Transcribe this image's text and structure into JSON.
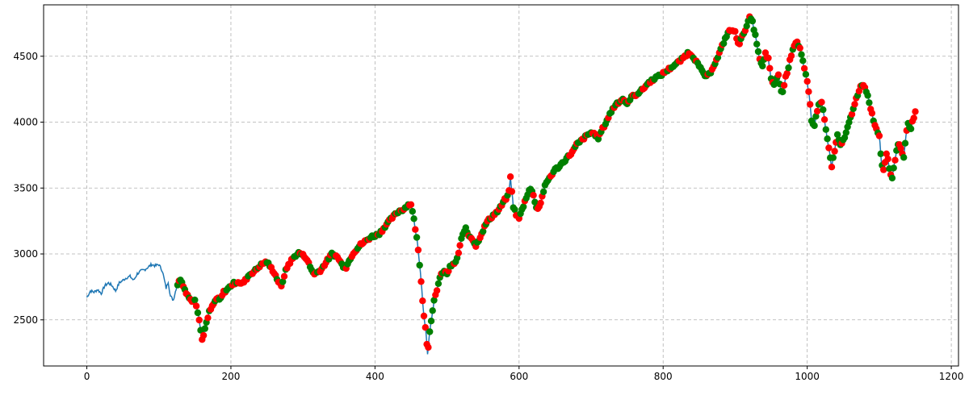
{
  "chart_data": {
    "type": "line",
    "title": "",
    "xlabel": "",
    "ylabel": "",
    "xlim": [
      -60,
      1210
    ],
    "ylim": [
      2150,
      4890
    ],
    "xticks": [
      0,
      200,
      400,
      600,
      800,
      1000,
      1200
    ],
    "yticks": [
      2500,
      3000,
      3500,
      4000,
      4500
    ],
    "xtick_labels": [
      "0",
      "200",
      "400",
      "600",
      "800",
      "1000",
      "1200"
    ],
    "ytick_labels": [
      "2500",
      "3000",
      "3500",
      "4000",
      "4500"
    ],
    "grid": true,
    "grid_style": "dashed",
    "colors": {
      "line": "#1f77b4",
      "sell_marker": "#ff0000",
      "buy_marker": "#008000",
      "grid": "#b0b0b0"
    },
    "series": [
      {
        "type": "line",
        "points": [
          [
            0,
            2670
          ],
          [
            5,
            2720
          ],
          [
            10,
            2710
          ],
          [
            15,
            2730
          ],
          [
            20,
            2700
          ],
          [
            25,
            2760
          ],
          [
            30,
            2780
          ],
          [
            35,
            2760
          ],
          [
            40,
            2720
          ],
          [
            45,
            2780
          ],
          [
            50,
            2800
          ],
          [
            55,
            2820
          ],
          [
            60,
            2830
          ],
          [
            65,
            2800
          ],
          [
            70,
            2850
          ],
          [
            75,
            2870
          ],
          [
            80,
            2880
          ],
          [
            85,
            2900
          ],
          [
            90,
            2920
          ],
          [
            95,
            2910
          ],
          [
            100,
            2920
          ],
          [
            105,
            2870
          ],
          [
            110,
            2740
          ],
          [
            113,
            2790
          ],
          [
            116,
            2680
          ],
          [
            120,
            2650
          ],
          [
            125,
            2760
          ],
          [
            130,
            2810
          ],
          [
            135,
            2740
          ],
          [
            140,
            2690
          ],
          [
            145,
            2640
          ],
          [
            150,
            2660
          ],
          [
            155,
            2540
          ],
          [
            158,
            2420
          ],
          [
            160,
            2350
          ],
          [
            165,
            2450
          ],
          [
            170,
            2560
          ],
          [
            175,
            2610
          ],
          [
            180,
            2660
          ],
          [
            185,
            2650
          ],
          [
            190,
            2710
          ],
          [
            195,
            2730
          ],
          [
            200,
            2760
          ],
          [
            205,
            2780
          ],
          [
            210,
            2790
          ],
          [
            215,
            2770
          ],
          [
            220,
            2800
          ],
          [
            225,
            2840
          ],
          [
            230,
            2860
          ],
          [
            235,
            2880
          ],
          [
            240,
            2910
          ],
          [
            245,
            2930
          ],
          [
            250,
            2940
          ],
          [
            255,
            2900
          ],
          [
            260,
            2860
          ],
          [
            265,
            2800
          ],
          [
            270,
            2750
          ],
          [
            275,
            2860
          ],
          [
            280,
            2920
          ],
          [
            285,
            2960
          ],
          [
            290,
            2990
          ],
          [
            295,
            3010
          ],
          [
            300,
            2990
          ],
          [
            305,
            2970
          ],
          [
            310,
            2900
          ],
          [
            315,
            2850
          ],
          [
            320,
            2860
          ],
          [
            325,
            2880
          ],
          [
            330,
            2920
          ],
          [
            335,
            2960
          ],
          [
            340,
            3000
          ],
          [
            345,
            2990
          ],
          [
            350,
            2960
          ],
          [
            355,
            2910
          ],
          [
            360,
            2900
          ],
          [
            365,
            2960
          ],
          [
            370,
            3010
          ],
          [
            375,
            3040
          ],
          [
            380,
            3070
          ],
          [
            385,
            3090
          ],
          [
            390,
            3110
          ],
          [
            395,
            3130
          ],
          [
            400,
            3140
          ],
          [
            405,
            3150
          ],
          [
            410,
            3180
          ],
          [
            415,
            3220
          ],
          [
            420,
            3250
          ],
          [
            425,
            3280
          ],
          [
            430,
            3310
          ],
          [
            435,
            3330
          ],
          [
            440,
            3340
          ],
          [
            445,
            3370
          ],
          [
            450,
            3380
          ],
          [
            455,
            3230
          ],
          [
            458,
            3120
          ],
          [
            461,
            2980
          ],
          [
            463,
            2870
          ],
          [
            465,
            2720
          ],
          [
            467,
            2590
          ],
          [
            469,
            2480
          ],
          [
            471,
            2400
          ],
          [
            473,
            2240
          ],
          [
            476,
            2420
          ],
          [
            479,
            2520
          ],
          [
            482,
            2640
          ],
          [
            486,
            2730
          ],
          [
            490,
            2820
          ],
          [
            495,
            2870
          ],
          [
            500,
            2850
          ],
          [
            505,
            2910
          ],
          [
            510,
            2920
          ],
          [
            515,
            2980
          ],
          [
            520,
            3110
          ],
          [
            525,
            3200
          ],
          [
            530,
            3140
          ],
          [
            535,
            3120
          ],
          [
            540,
            3060
          ],
          [
            545,
            3120
          ],
          [
            550,
            3180
          ],
          [
            555,
            3240
          ],
          [
            560,
            3270
          ],
          [
            565,
            3300
          ],
          [
            570,
            3320
          ],
          [
            575,
            3360
          ],
          [
            580,
            3410
          ],
          [
            585,
            3440
          ],
          [
            588,
            3580
          ],
          [
            592,
            3360
          ],
          [
            596,
            3300
          ],
          [
            600,
            3270
          ],
          [
            605,
            3350
          ],
          [
            610,
            3430
          ],
          [
            615,
            3500
          ],
          [
            620,
            3450
          ],
          [
            625,
            3330
          ],
          [
            630,
            3390
          ],
          [
            635,
            3500
          ],
          [
            640,
            3560
          ],
          [
            645,
            3600
          ],
          [
            650,
            3640
          ],
          [
            655,
            3660
          ],
          [
            660,
            3690
          ],
          [
            665,
            3720
          ],
          [
            670,
            3750
          ],
          [
            675,
            3780
          ],
          [
            680,
            3830
          ],
          [
            685,
            3850
          ],
          [
            690,
            3880
          ],
          [
            695,
            3900
          ],
          [
            700,
            3920
          ],
          [
            705,
            3910
          ],
          [
            710,
            3880
          ],
          [
            715,
            3940
          ],
          [
            720,
            3990
          ],
          [
            725,
            4050
          ],
          [
            730,
            4100
          ],
          [
            735,
            4140
          ],
          [
            740,
            4160
          ],
          [
            745,
            4180
          ],
          [
            750,
            4130
          ],
          [
            755,
            4190
          ],
          [
            760,
            4200
          ],
          [
            765,
            4220
          ],
          [
            770,
            4240
          ],
          [
            775,
            4270
          ],
          [
            780,
            4300
          ],
          [
            785,
            4320
          ],
          [
            790,
            4340
          ],
          [
            795,
            4350
          ],
          [
            800,
            4370
          ],
          [
            805,
            4390
          ],
          [
            810,
            4410
          ],
          [
            815,
            4430
          ],
          [
            820,
            4450
          ],
          [
            825,
            4470
          ],
          [
            830,
            4500
          ],
          [
            835,
            4530
          ],
          [
            840,
            4510
          ],
          [
            845,
            4470
          ],
          [
            850,
            4420
          ],
          [
            855,
            4380
          ],
          [
            860,
            4340
          ],
          [
            865,
            4370
          ],
          [
            870,
            4430
          ],
          [
            875,
            4480
          ],
          [
            880,
            4550
          ],
          [
            885,
            4620
          ],
          [
            890,
            4680
          ],
          [
            895,
            4700
          ],
          [
            900,
            4680
          ],
          [
            905,
            4590
          ],
          [
            910,
            4650
          ],
          [
            915,
            4720
          ],
          [
            920,
            4790
          ],
          [
            923,
            4780
          ],
          [
            926,
            4710
          ],
          [
            930,
            4600
          ],
          [
            934,
            4470
          ],
          [
            938,
            4420
          ],
          [
            942,
            4520
          ],
          [
            946,
            4480
          ],
          [
            950,
            4320
          ],
          [
            955,
            4280
          ],
          [
            960,
            4360
          ],
          [
            965,
            4200
          ],
          [
            970,
            4340
          ],
          [
            975,
            4440
          ],
          [
            980,
            4560
          ],
          [
            985,
            4620
          ],
          [
            990,
            4560
          ],
          [
            995,
            4430
          ],
          [
            1000,
            4300
          ],
          [
            1003,
            4190
          ],
          [
            1006,
            4010
          ],
          [
            1010,
            3980
          ],
          [
            1015,
            4120
          ],
          [
            1020,
            4160
          ],
          [
            1025,
            3980
          ],
          [
            1030,
            3800
          ],
          [
            1034,
            3660
          ],
          [
            1038,
            3780
          ],
          [
            1042,
            3900
          ],
          [
            1046,
            3820
          ],
          [
            1050,
            3860
          ],
          [
            1055,
            3940
          ],
          [
            1060,
            4030
          ],
          [
            1065,
            4130
          ],
          [
            1070,
            4200
          ],
          [
            1075,
            4280
          ],
          [
            1080,
            4270
          ],
          [
            1085,
            4180
          ],
          [
            1090,
            4060
          ],
          [
            1095,
            3960
          ],
          [
            1100,
            3900
          ],
          [
            1103,
            3700
          ],
          [
            1106,
            3640
          ],
          [
            1110,
            3770
          ],
          [
            1115,
            3620
          ],
          [
            1118,
            3580
          ],
          [
            1122,
            3720
          ],
          [
            1126,
            3840
          ],
          [
            1130,
            3800
          ],
          [
            1134,
            3740
          ],
          [
            1137,
            3900
          ],
          [
            1140,
            3980
          ],
          [
            1143,
            3940
          ],
          [
            1146,
            4000
          ],
          [
            1150,
            4080
          ]
        ]
      }
    ]
  }
}
